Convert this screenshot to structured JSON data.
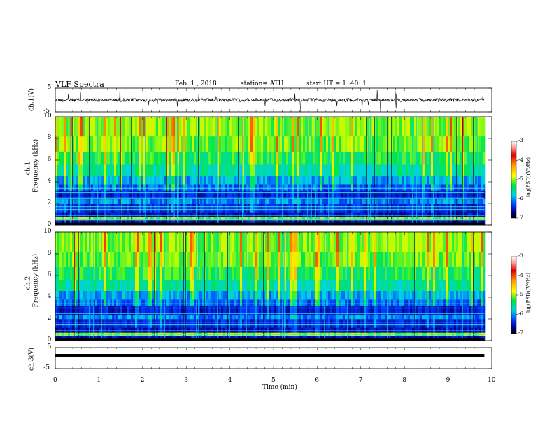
{
  "header": {
    "title": "VLF  Spectra",
    "date": "Feb. 1  , 2018",
    "station": "station= ATH",
    "start": "start  UT  =   1 :40: 1"
  },
  "chart_data": [
    {
      "type": "line",
      "panel": "ch1-waveform",
      "ylabel": "ch.1(V)",
      "ylim": [
        -5,
        5
      ],
      "yticks": [
        "5",
        "-5"
      ],
      "xlim": [
        0,
        10
      ],
      "color": "#000000"
    },
    {
      "type": "heatmap",
      "panel": "ch1-spectrogram",
      "ylabel": "ch.1\nFrequency (kHz)",
      "ylabel_line1": "ch.1",
      "ylabel_line2": "Frequency  (kHz)",
      "ylim": [
        0,
        10
      ],
      "yticks": [
        "0",
        "2",
        "4",
        "6",
        "8",
        "10"
      ],
      "xlim": [
        0,
        10
      ],
      "data_end_min": 9.83,
      "colorbar": {
        "label": "log(PSD)(V²/Hz)",
        "range": [
          -7,
          -3
        ],
        "ticks": [
          "-3",
          "-4",
          "-5",
          "-6",
          "-7"
        ]
      }
    },
    {
      "type": "heatmap",
      "panel": "ch2-spectrogram",
      "ylabel_line1": "ch.2",
      "ylabel_line2": "Frequency  (kHz)",
      "ylim": [
        0,
        10
      ],
      "yticks": [
        "0",
        "2",
        "4",
        "6",
        "8",
        "10"
      ],
      "xlim": [
        0,
        10
      ],
      "data_end_min": 9.83,
      "colorbar": {
        "label": "log(PSD)(V²/Hz)",
        "range": [
          -7,
          -3
        ],
        "ticks": [
          "-3",
          "-4",
          "-5",
          "-6",
          "-7"
        ]
      }
    },
    {
      "type": "line",
      "panel": "ch3-waveform",
      "ylabel": "ch.3(V)",
      "ylim": [
        -5,
        5
      ],
      "yticks": [
        "5",
        "-5"
      ],
      "xlim": [
        0,
        10
      ],
      "constant_value": 0,
      "color": "#000000"
    }
  ],
  "xaxis": {
    "label": "Time  (min)",
    "ticks": [
      "0",
      "1",
      "2",
      "3",
      "4",
      "5",
      "6",
      "7",
      "8",
      "9",
      "10"
    ]
  }
}
